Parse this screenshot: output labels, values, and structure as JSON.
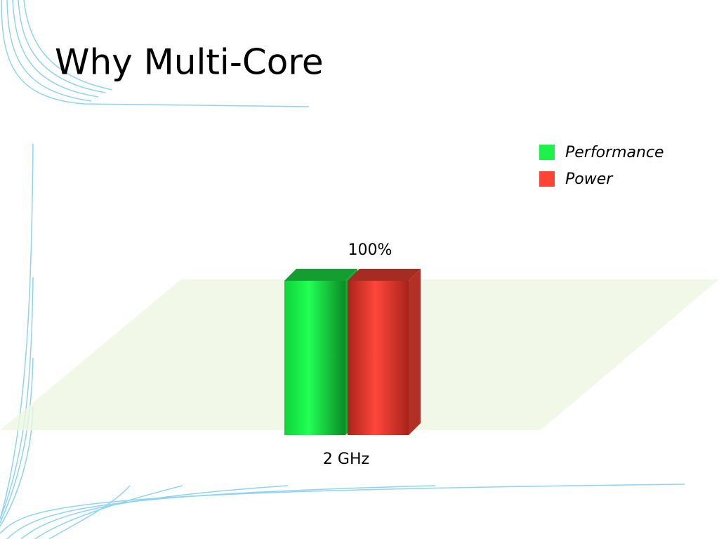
{
  "chart_data": {
    "type": "bar3d",
    "title": "Why Multi-Core",
    "categories": [
      "2 GHz"
    ],
    "series": [
      {
        "name": "Performance",
        "color": "#1ef24a",
        "values": [
          100
        ],
        "value_labels": [
          "100%"
        ]
      },
      {
        "name": "Power",
        "color": "#ff4436",
        "values": [
          100
        ]
      }
    ],
    "legend": "top-right"
  }
}
